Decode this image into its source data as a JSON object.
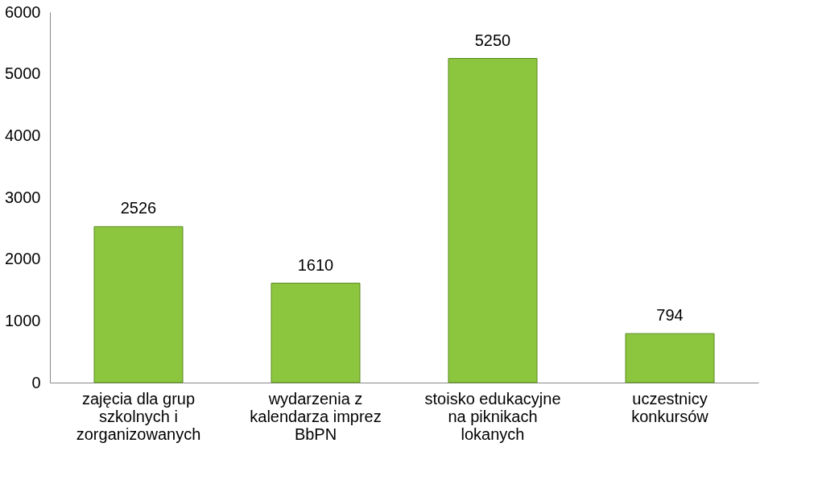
{
  "chart_data": {
    "type": "bar",
    "categories": [
      "zajęcia dla grup szkolnych i zorganizowanych",
      "wydarzenia z kalendarza imprez BbPN",
      "stoisko edukacyjne na piknikach lokanych",
      "uczestnicy konkursów"
    ],
    "values": [
      2526,
      1610,
      5250,
      794
    ],
    "color": "#8cc63f",
    "ylim": [
      0,
      6000
    ],
    "yticks": [
      0,
      1000,
      2000,
      3000,
      4000,
      5000,
      6000
    ],
    "grid": false,
    "data_labels": true
  }
}
